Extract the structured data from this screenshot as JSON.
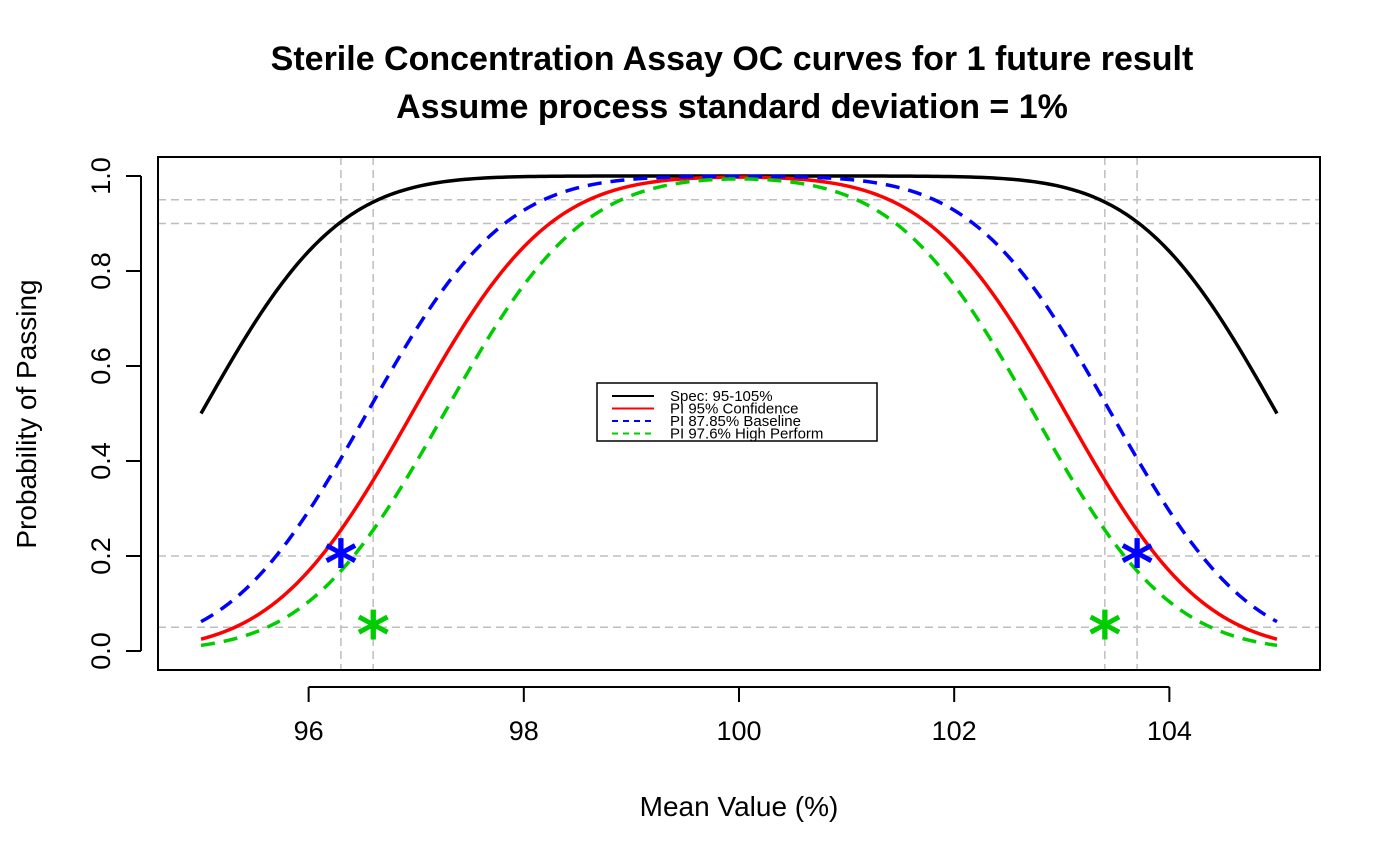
{
  "chart_data": {
    "type": "line",
    "title": "Sterile Concentration Assay OC curves for 1 future result",
    "subtitle": "Assume process standard deviation = 1%",
    "xlabel": "Mean Value (%)",
    "ylabel": "Probability of Passing",
    "xlim": [
      94.6,
      105.4
    ],
    "ylim": [
      -0.04,
      1.04
    ],
    "x_ticks": [
      96,
      98,
      100,
      102,
      104
    ],
    "x_tick_labels": [
      "96",
      "98",
      "100",
      "102",
      "104"
    ],
    "y_ticks": [
      0.0,
      0.2,
      0.4,
      0.6,
      0.8,
      1.0
    ],
    "y_tick_labels": [
      "0.0",
      "0.2",
      "0.4",
      "0.6",
      "0.8",
      "1.0"
    ],
    "grid": {
      "h": [
        0.05,
        0.2,
        0.9,
        0.95
      ],
      "v": [
        96.3,
        96.6,
        103.4,
        103.7
      ],
      "color": "#bebebe",
      "style": "dashed"
    },
    "legend_position": "center",
    "series": [
      {
        "name": "Spec: 95-105%",
        "color": "#000000",
        "style": "solid",
        "lower": 95.0,
        "upper": 105.0
      },
      {
        "name": "PI 95% Confidence",
        "color": "#ff0000",
        "style": "solid",
        "lower": 96.96,
        "upper": 103.04
      },
      {
        "name": "PI 87.85% Baseline",
        "color": "#0000ff",
        "style": "dashed",
        "lower": 96.54,
        "upper": 103.46
      },
      {
        "name": "PI 97.6% High Perform",
        "color": "#00cd00",
        "style": "dashed",
        "lower": 97.26,
        "upper": 102.74
      }
    ],
    "x_range": [
      95,
      105
    ],
    "sd": 1,
    "markers": [
      {
        "x": 96.3,
        "y": 0.2,
        "color": "#0000ff",
        "symbol": "*"
      },
      {
        "x": 103.7,
        "y": 0.2,
        "color": "#0000ff",
        "symbol": "*"
      },
      {
        "x": 96.6,
        "y": 0.05,
        "color": "#00cd00",
        "symbol": "*"
      },
      {
        "x": 103.4,
        "y": 0.05,
        "color": "#00cd00",
        "symbol": "*"
      }
    ]
  }
}
